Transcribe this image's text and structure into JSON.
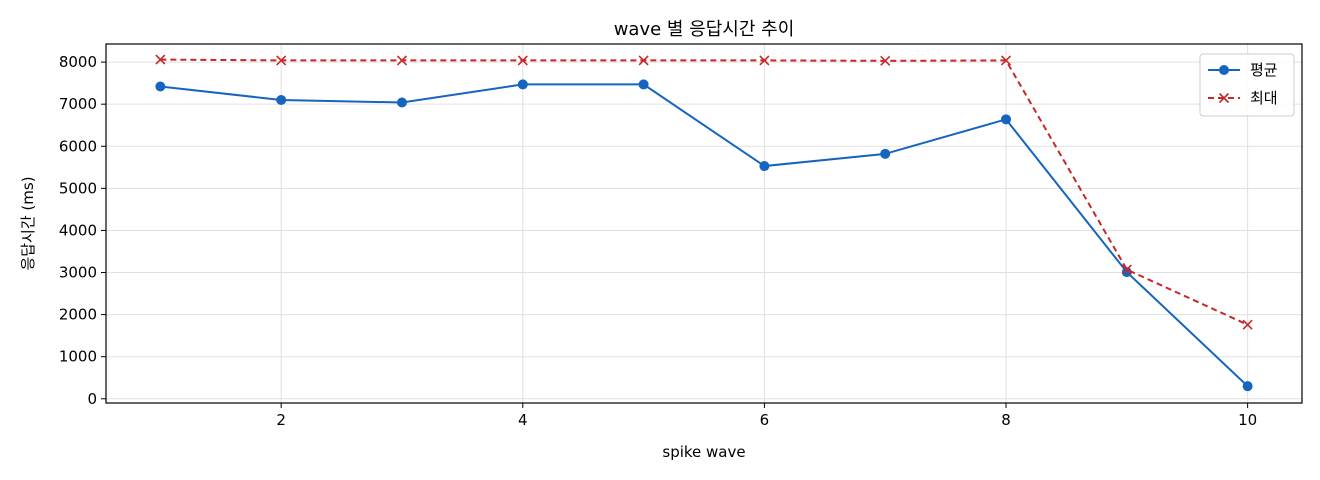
{
  "chart_data": {
    "type": "line",
    "title": "wave 별 응답시간 추이",
    "xlabel": "spike wave",
    "ylabel": "응답시간 (ms)",
    "x": [
      1,
      2,
      3,
      4,
      5,
      6,
      7,
      8,
      9,
      10
    ],
    "xlim": [
      0.55,
      10.45
    ],
    "ylim": [
      -100,
      8430
    ],
    "xticks": [
      2,
      4,
      6,
      8,
      10
    ],
    "yticks": [
      0,
      1000,
      2000,
      3000,
      4000,
      5000,
      6000,
      7000,
      8000
    ],
    "grid": true,
    "legend_position": "top-right",
    "series": [
      {
        "name": "평균",
        "values": [
          7420,
          7100,
          7040,
          7470,
          7470,
          5530,
          5820,
          6640,
          3010,
          300
        ],
        "color": "#1565c0",
        "marker": "circle",
        "line": "solid"
      },
      {
        "name": "최대",
        "values": [
          8060,
          8040,
          8040,
          8040,
          8040,
          8040,
          8030,
          8040,
          3070,
          1760
        ],
        "color": "#c62828",
        "marker": "x",
        "line": "dashed"
      }
    ]
  }
}
